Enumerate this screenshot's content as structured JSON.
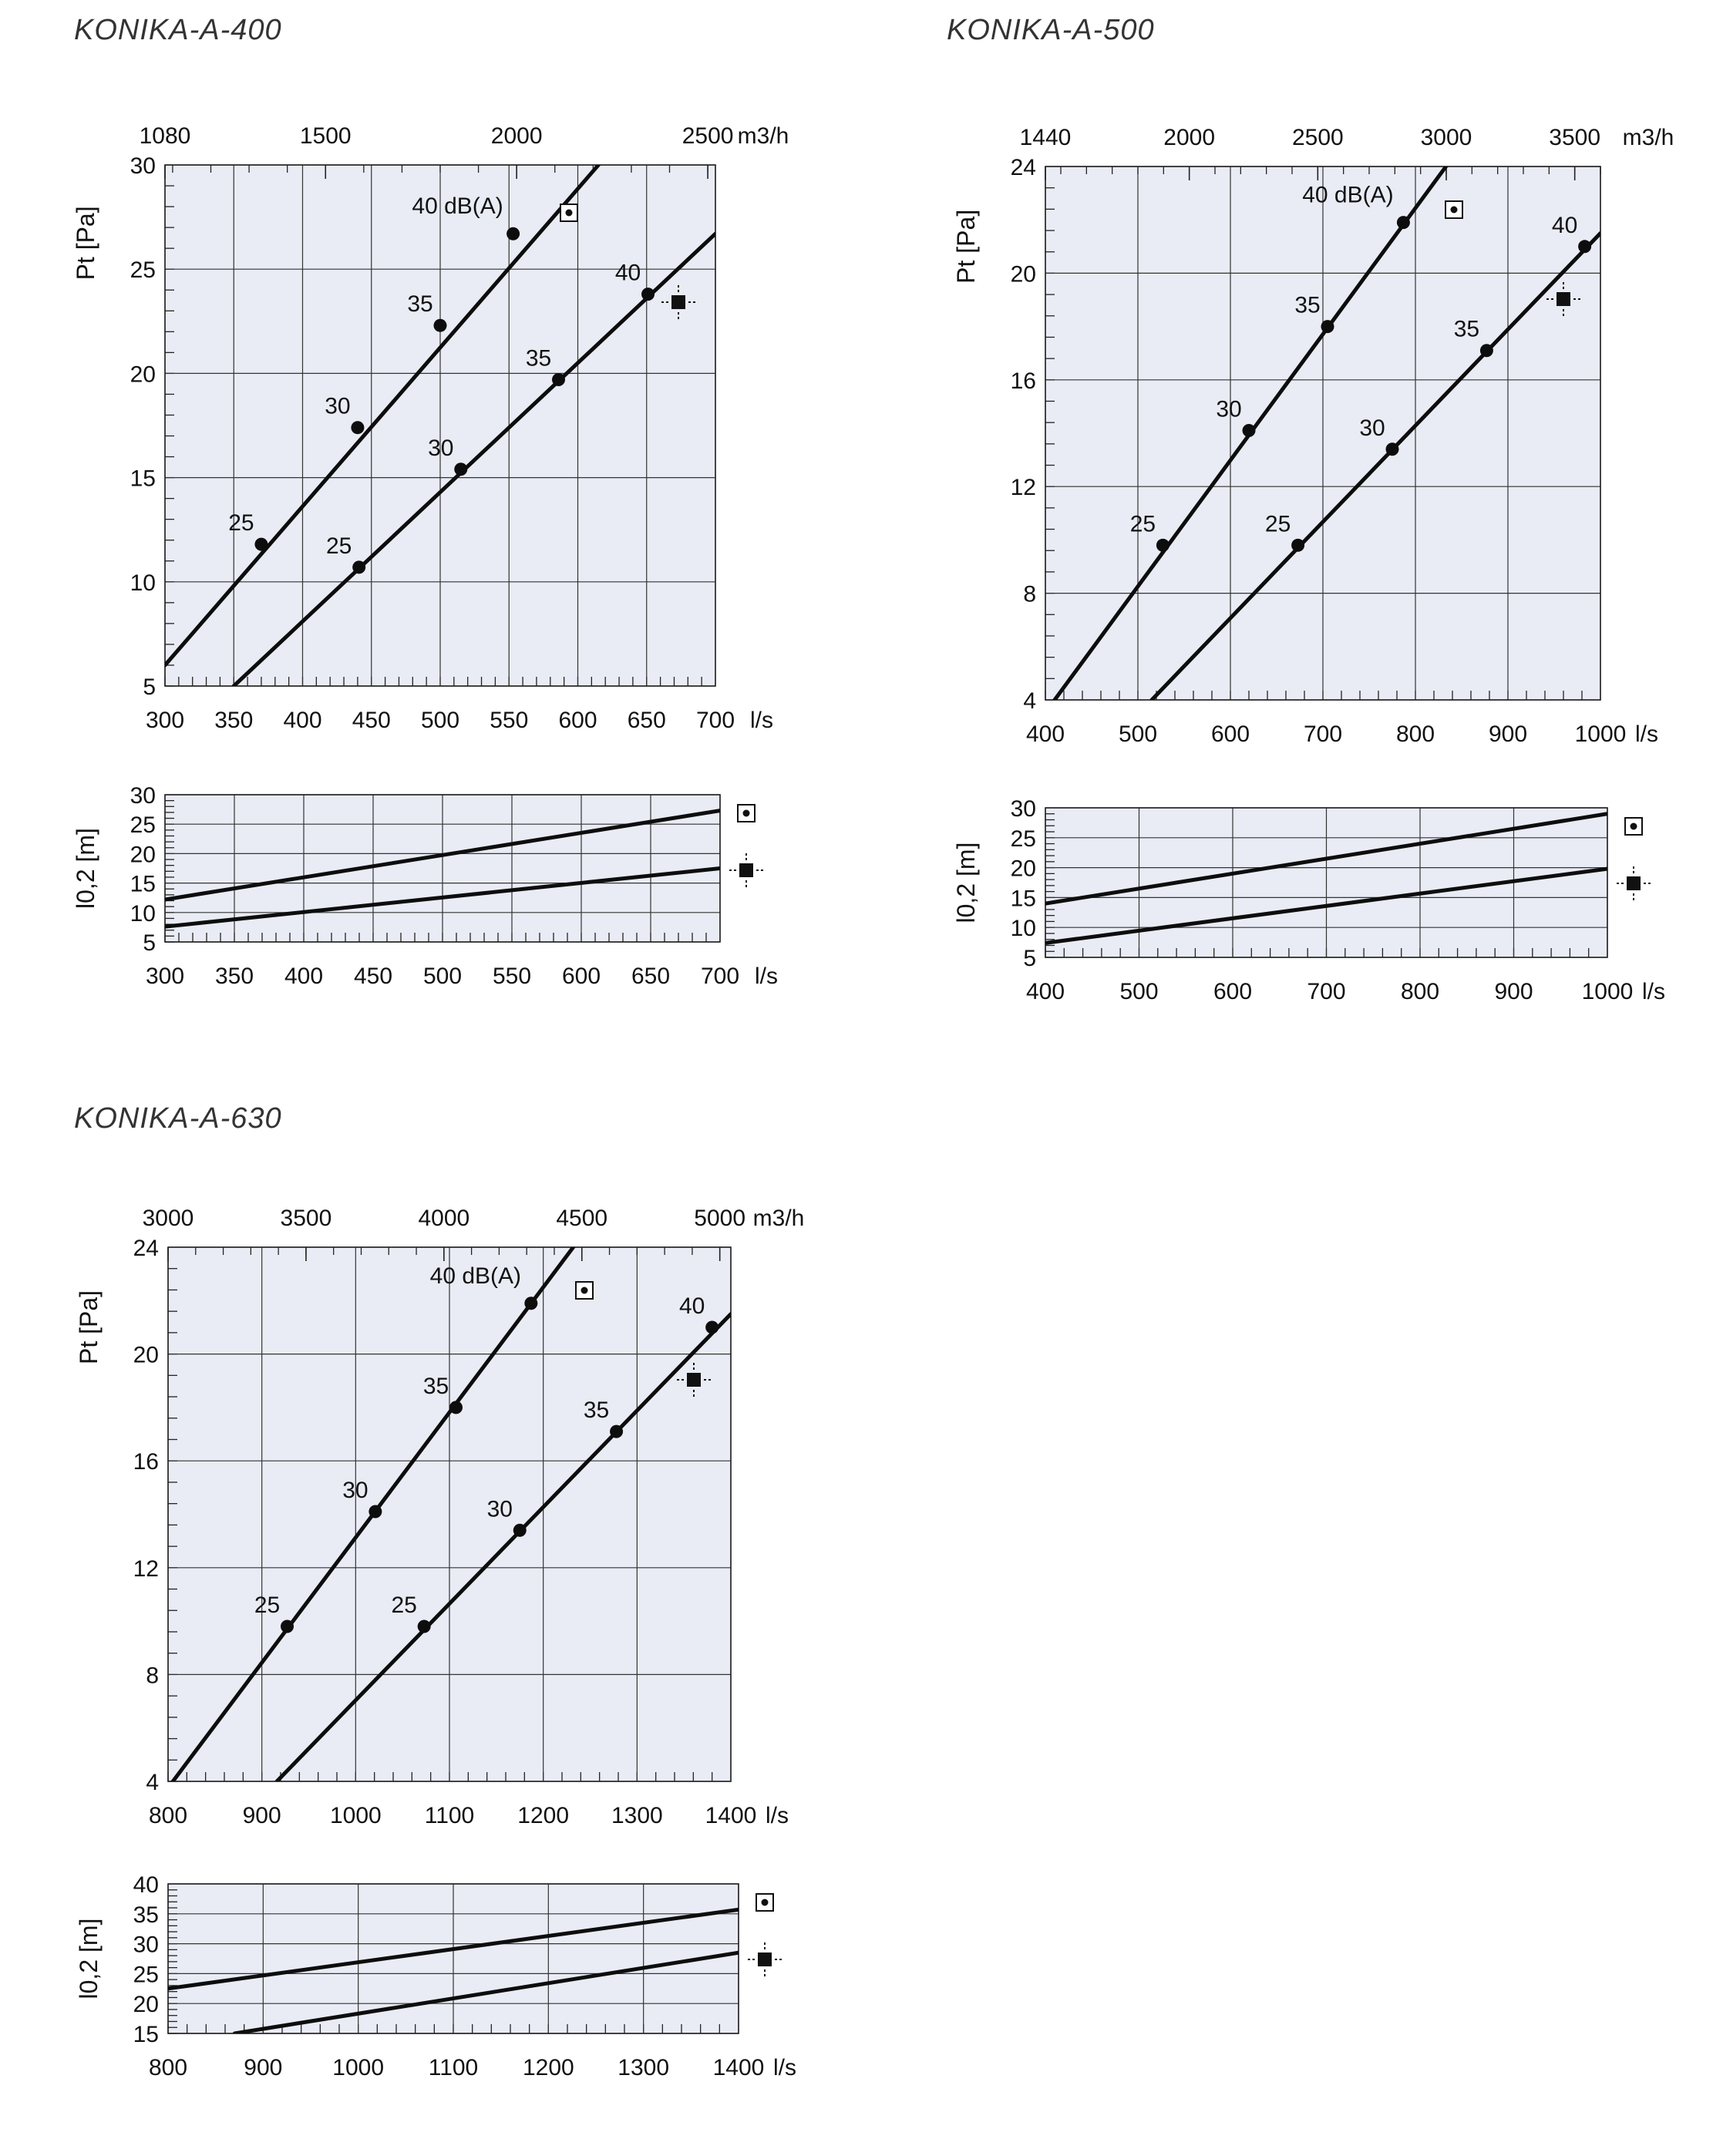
{
  "charts": [
    {
      "title": "KONIKA-A-400",
      "main": {
        "x_unit": "l/s",
        "x_ticks": [
          "300",
          "350",
          "400",
          "450",
          "500",
          "550",
          "600",
          "650",
          "700"
        ],
        "xlim": [
          300,
          700
        ],
        "y_label": "Pt [Pa]",
        "y_ticks": [
          "5",
          "10",
          "15",
          "20",
          "25",
          "30"
        ],
        "ylim": [
          5,
          30
        ],
        "top_unit": "m3/h",
        "top_ticks": [
          {
            "label": "1080",
            "value": 1080
          },
          {
            "label": "1500",
            "value": 1500
          },
          {
            "label": "2000",
            "value": 2000
          },
          {
            "label": "2500",
            "value": 2500
          }
        ],
        "annotation": "40 dB(A)",
        "series": [
          {
            "icon": "square-dot-icon",
            "x": [
              300,
              615
            ],
            "y": [
              6.0,
              30
            ],
            "points": [
              {
                "x": 370,
                "y": 11.8,
                "label": "25"
              },
              {
                "x": 440,
                "y": 17.4,
                "label": "30"
              },
              {
                "x": 500,
                "y": 22.3,
                "label": "35"
              },
              {
                "x": 553,
                "y": 26.7,
                "label": "40"
              }
            ]
          },
          {
            "icon": "diffuser-square-icon",
            "x": [
              350,
              700
            ],
            "y": [
              5.0,
              26.7
            ],
            "points": [
              {
                "x": 441,
                "y": 10.7,
                "label": "25"
              },
              {
                "x": 515,
                "y": 15.4,
                "label": "30"
              },
              {
                "x": 586,
                "y": 19.7,
                "label": "35"
              },
              {
                "x": 651,
                "y": 23.8,
                "label": "40"
              }
            ]
          }
        ]
      },
      "throw": {
        "x_unit": "l/s",
        "x_ticks": [
          "300",
          "350",
          "400",
          "450",
          "500",
          "550",
          "600",
          "650",
          "700"
        ],
        "xlim": [
          300,
          700
        ],
        "y_label": "l0,2 [m]",
        "y_ticks": [
          "5",
          "10",
          "15",
          "20",
          "25",
          "30"
        ],
        "ylim": [
          5,
          30
        ],
        "series": [
          {
            "icon": "square-dot-icon",
            "x": [
              300,
              700
            ],
            "y": [
              12.2,
              27.3
            ]
          },
          {
            "icon": "diffuser-square-icon",
            "x": [
              300,
              700
            ],
            "y": [
              7.6,
              17.5
            ]
          }
        ]
      }
    },
    {
      "title": "KONIKA-A-500",
      "main": {
        "x_unit": "l/s",
        "x_ticks": [
          "400",
          "500",
          "600",
          "700",
          "800",
          "900",
          "1000"
        ],
        "xlim": [
          400,
          1000
        ],
        "y_label": "Pt [Pa]",
        "y_ticks": [
          "4",
          "8",
          "12",
          "16",
          "20",
          "24"
        ],
        "ylim": [
          4,
          24
        ],
        "top_unit": "m3/h",
        "top_ticks": [
          {
            "label": "1440",
            "value": 1440
          },
          {
            "label": "2000",
            "value": 2000
          },
          {
            "label": "2500",
            "value": 2500
          },
          {
            "label": "3000",
            "value": 3000
          },
          {
            "label": "3500",
            "value": 3500
          }
        ],
        "annotation": "40 dB(A)",
        "series": [
          {
            "icon": "square-dot-icon",
            "x": [
              410,
              833
            ],
            "y": [
              4.0,
              24
            ],
            "points": [
              {
                "x": 527,
                "y": 9.8,
                "label": "25"
              },
              {
                "x": 620,
                "y": 14.1,
                "label": "30"
              },
              {
                "x": 705,
                "y": 18.0,
                "label": "35"
              },
              {
                "x": 787,
                "y": 21.9,
                "label": "40"
              }
            ]
          },
          {
            "icon": "diffuser-square-icon",
            "x": [
              515,
              1000
            ],
            "y": [
              4.0,
              21.5
            ],
            "points": [
              {
                "x": 673,
                "y": 9.8,
                "label": "25"
              },
              {
                "x": 775,
                "y": 13.4,
                "label": "30"
              },
              {
                "x": 877,
                "y": 17.1,
                "label": "35"
              },
              {
                "x": 983,
                "y": 21.0,
                "label": "40"
              }
            ]
          }
        ]
      },
      "throw": {
        "x_unit": "l/s",
        "x_ticks": [
          "400",
          "500",
          "600",
          "700",
          "800",
          "900",
          "1000"
        ],
        "xlim": [
          400,
          1000
        ],
        "y_label": "l0,2 [m]",
        "y_ticks": [
          "5",
          "10",
          "15",
          "20",
          "25",
          "30"
        ],
        "ylim": [
          5,
          30
        ],
        "series": [
          {
            "icon": "square-dot-icon",
            "x": [
              400,
              1000
            ],
            "y": [
              14.0,
              29.0
            ]
          },
          {
            "icon": "diffuser-square-icon",
            "x": [
              400,
              1000
            ],
            "y": [
              7.4,
              19.8
            ]
          }
        ]
      }
    },
    {
      "title": "KONIKA-A-630",
      "main": {
        "x_unit": "l/s",
        "x_ticks": [
          "800",
          "900",
          "1000",
          "1100",
          "1200",
          "1300",
          "1400"
        ],
        "xlim": [
          800,
          1400
        ],
        "y_label": "Pt [Pa]",
        "y_ticks": [
          "4",
          "8",
          "12",
          "16",
          "20",
          "24"
        ],
        "ylim": [
          4,
          24
        ],
        "top_unit": "m3/h",
        "top_ticks": [
          {
            "label": "3000",
            "value": 3000
          },
          {
            "label": "3500",
            "value": 3500
          },
          {
            "label": "4000",
            "value": 4000
          },
          {
            "label": "4500",
            "value": 4500
          },
          {
            "label": "5000",
            "value": 5000
          }
        ],
        "annotation": "40 dB(A)",
        "series": [
          {
            "icon": "square-dot-icon",
            "x": [
              803,
              1232
            ],
            "y": [
              3.9,
              24
            ],
            "points": [
              {
                "x": 927,
                "y": 9.8,
                "label": "25"
              },
              {
                "x": 1021,
                "y": 14.1,
                "label": "30"
              },
              {
                "x": 1107,
                "y": 18.0,
                "label": "35"
              },
              {
                "x": 1187,
                "y": 21.9,
                "label": "40"
              }
            ]
          },
          {
            "icon": "diffuser-square-icon",
            "x": [
              916,
              1400
            ],
            "y": [
              4.0,
              21.5
            ],
            "points": [
              {
                "x": 1073,
                "y": 9.8,
                "label": "25"
              },
              {
                "x": 1175,
                "y": 13.4,
                "label": "30"
              },
              {
                "x": 1278,
                "y": 17.1,
                "label": "35"
              },
              {
                "x": 1380,
                "y": 21.0,
                "label": "40"
              }
            ]
          }
        ]
      },
      "throw": {
        "x_unit": "l/s",
        "x_ticks": [
          "800",
          "900",
          "1000",
          "1100",
          "1200",
          "1300",
          "1400"
        ],
        "xlim": [
          800,
          1400
        ],
        "y_label": "l0,2 [m]",
        "y_ticks": [
          "15",
          "20",
          "25",
          "30",
          "35",
          "40"
        ],
        "ylim": [
          15,
          40
        ],
        "series": [
          {
            "icon": "square-dot-icon",
            "x": [
              800,
              1400
            ],
            "y": [
              22.5,
              35.7
            ]
          },
          {
            "icon": "diffuser-square-icon",
            "x": [
              870,
              1400
            ],
            "y": [
              15.0,
              28.5
            ]
          }
        ]
      }
    }
  ]
}
